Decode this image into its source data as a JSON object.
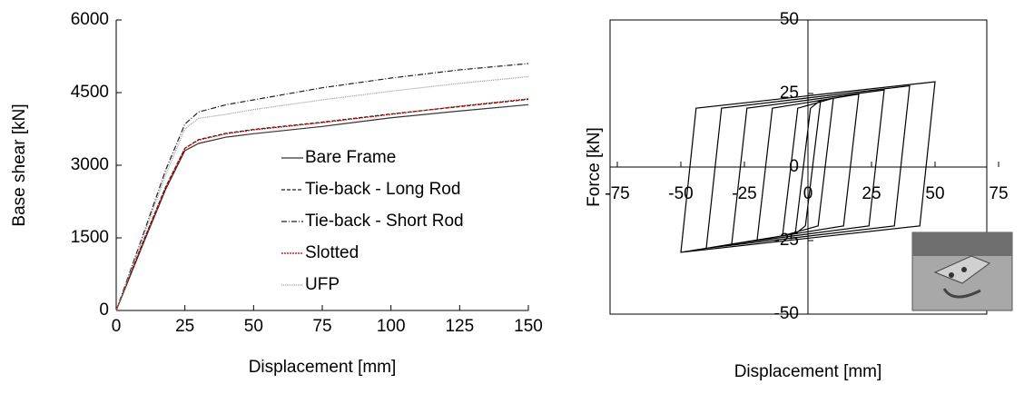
{
  "chart_data": [
    {
      "type": "line",
      "xlabel": "Displacement [mm]",
      "ylabel": "Base shear [kN]",
      "xlim": [
        0,
        150
      ],
      "xticks": [
        0,
        25,
        50,
        75,
        100,
        125,
        150
      ],
      "ylim": [
        0,
        6000
      ],
      "yticks": [
        0,
        1500,
        3000,
        4500,
        6000
      ],
      "legend": "center",
      "series": [
        {
          "name": "Bare Frame",
          "color": "#333333",
          "dash": "none",
          "x": [
            0,
            10,
            18,
            25,
            30,
            40,
            50,
            75,
            100,
            125,
            150
          ],
          "values": [
            0,
            1400,
            2500,
            3300,
            3450,
            3580,
            3650,
            3800,
            3980,
            4120,
            4250
          ]
        },
        {
          "name": "Tie-back - Long Rod",
          "color": "#222222",
          "dash": "4,2",
          "x": [
            0,
            10,
            18,
            25,
            30,
            40,
            50,
            75,
            100,
            125,
            150
          ],
          "values": [
            0,
            1450,
            2550,
            3350,
            3530,
            3660,
            3740,
            3890,
            4060,
            4210,
            4360
          ]
        },
        {
          "name": "Tie-back - Short Rod",
          "color": "#222222",
          "dash": "6,2,1,2",
          "x": [
            0,
            10,
            18,
            25,
            30,
            40,
            50,
            75,
            100,
            125,
            150
          ],
          "values": [
            0,
            1600,
            2900,
            3850,
            4100,
            4250,
            4350,
            4600,
            4800,
            4970,
            5100
          ]
        },
        {
          "name": "Slotted",
          "color": "#c00000",
          "dash": "2,1",
          "x": [
            0,
            10,
            18,
            25,
            30,
            40,
            50,
            75,
            100,
            125,
            150
          ],
          "values": [
            0,
            1450,
            2550,
            3350,
            3520,
            3650,
            3730,
            3880,
            4050,
            4220,
            4370
          ]
        },
        {
          "name": "UFP",
          "color": "#999999",
          "dash": "1,1",
          "x": [
            0,
            10,
            18,
            25,
            30,
            40,
            50,
            75,
            100,
            125,
            150
          ],
          "values": [
            0,
            1550,
            2800,
            3750,
            3970,
            4050,
            4150,
            4350,
            4530,
            4690,
            4830
          ]
        }
      ]
    },
    {
      "type": "line",
      "xlabel": "Displacement [mm]",
      "ylabel": "Force [kN]",
      "axes_cross_at_zero": true,
      "xlim": [
        -75,
        75
      ],
      "xticks": [
        -75,
        -50,
        -25,
        0,
        25,
        50,
        75
      ],
      "ylim": [
        -50,
        50
      ],
      "yticks": [
        -50,
        -25,
        0,
        25,
        50
      ],
      "series": [
        {
          "color": "#000000",
          "dash": "none",
          "x": [
            -5,
            1,
            5,
            -1,
            -5,
            -10,
            -4,
            10,
            4,
            -10,
            -20,
            -14,
            20,
            14,
            -20,
            -30,
            -24,
            30,
            24,
            -30,
            -40,
            -34,
            40,
            34,
            -40,
            -50,
            -44,
            50,
            44,
            -50
          ],
          "values": [
            -22.7,
            20,
            22.7,
            -20,
            -22.7,
            -23.4,
            20,
            23.4,
            -20,
            -23.4,
            -24.8,
            20,
            24.8,
            -20,
            -24.8,
            -26.2,
            20,
            26.2,
            -20,
            -26.2,
            -27.6,
            20,
            27.6,
            -20,
            -27.6,
            -29,
            20,
            29,
            -20,
            -29
          ]
        }
      ]
    }
  ]
}
